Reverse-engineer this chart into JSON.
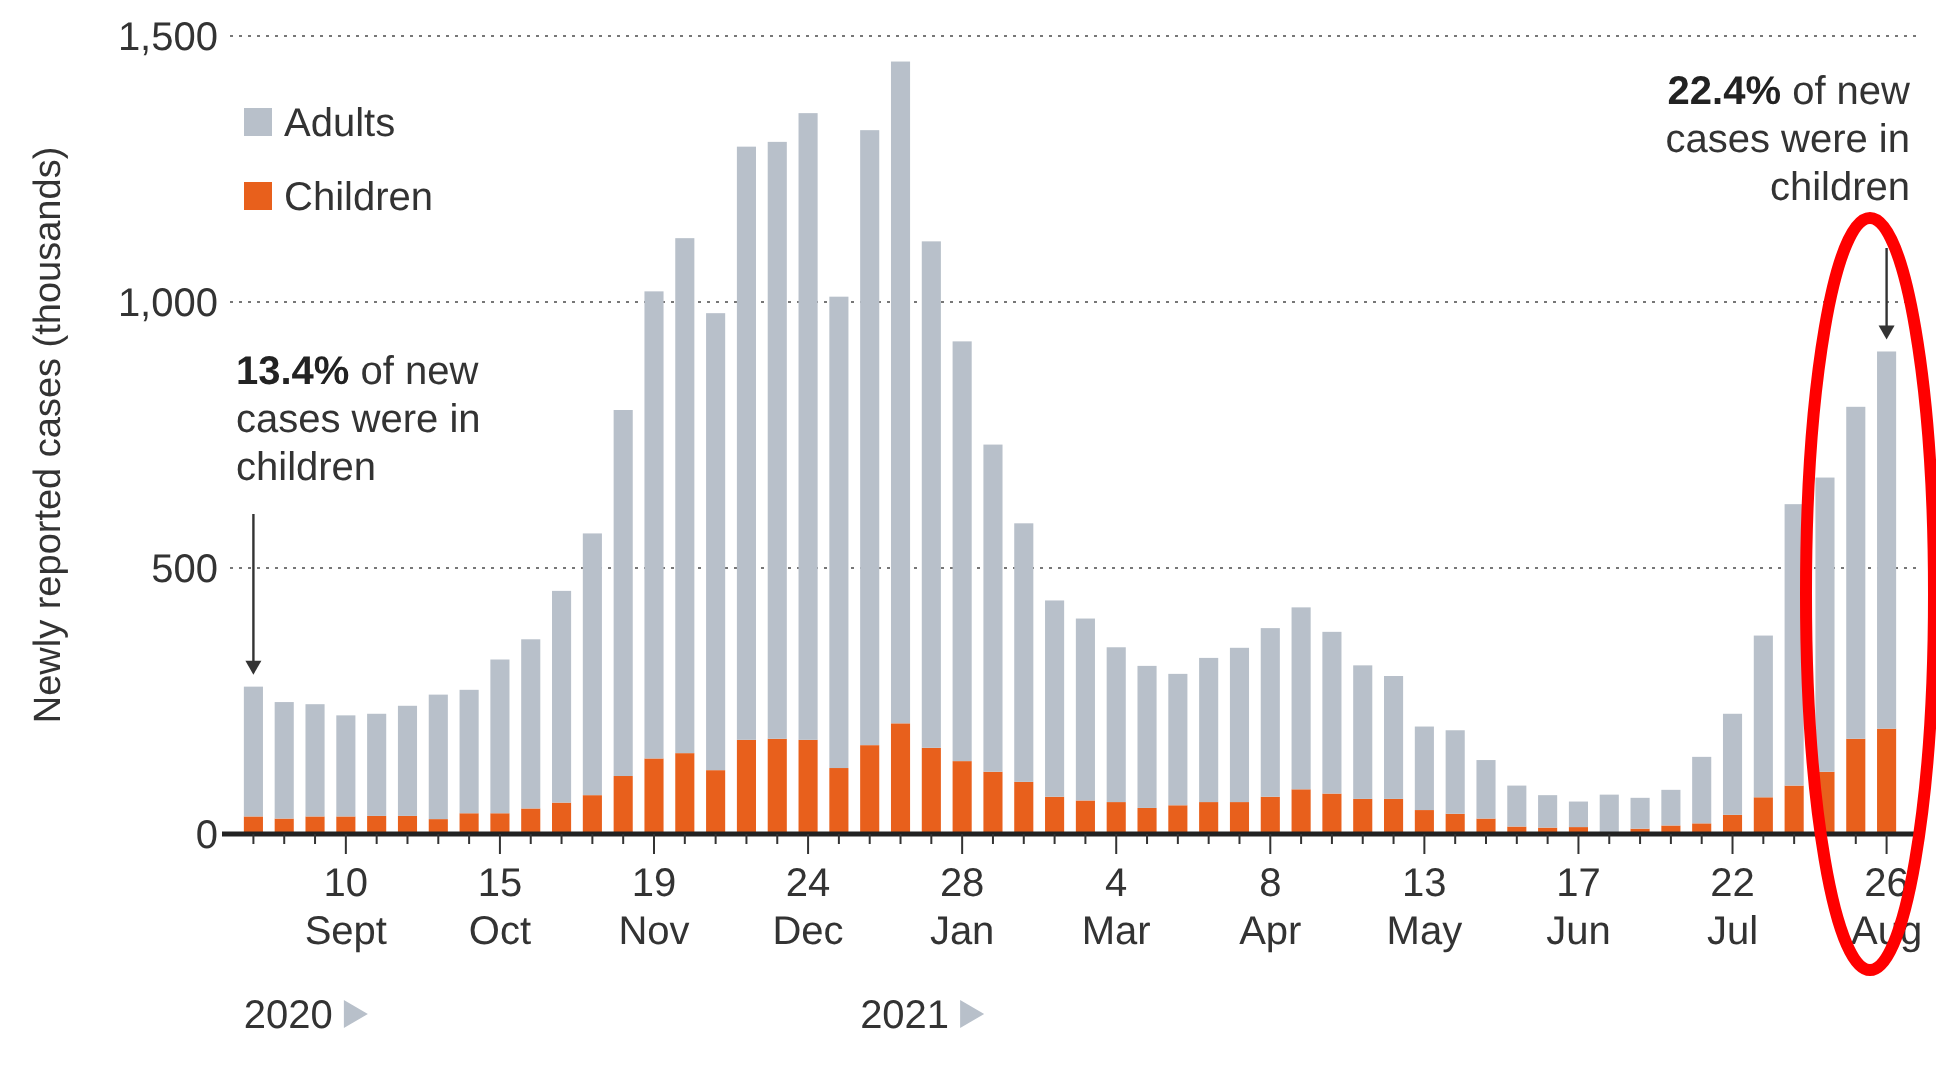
{
  "chart_data": {
    "type": "bar",
    "stacked": true,
    "ylabel": "Newly reported cases (thousands)",
    "categories": [
      null,
      null,
      null,
      "10\nSept",
      null,
      null,
      null,
      null,
      "15\nOct",
      null,
      null,
      null,
      null,
      "19\nNov",
      null,
      null,
      null,
      null,
      "24\nDec",
      null,
      null,
      null,
      null,
      "28\nJan",
      null,
      null,
      null,
      null,
      "4\nMar",
      null,
      null,
      null,
      null,
      "8\nApr",
      null,
      null,
      null,
      null,
      "13\nMay",
      null,
      null,
      null,
      null,
      "17\nJun",
      null,
      null,
      null,
      null,
      "22\nJul",
      null,
      null,
      null,
      null,
      "26\nAug"
    ],
    "series": [
      {
        "name": "Children",
        "color": "#e8601c",
        "values": [
          33,
          29,
          33,
          33,
          34,
          34,
          28,
          39,
          39,
          48,
          59,
          73,
          109,
          142,
          152,
          120,
          177,
          179,
          177,
          124,
          167,
          208,
          162,
          137,
          117,
          98,
          70,
          63,
          60,
          49,
          54,
          60,
          60,
          70,
          84,
          76,
          66,
          66,
          45,
          38,
          29,
          14,
          12,
          13,
          null,
          10,
          16,
          20,
          36,
          69,
          91,
          117,
          179,
          198
        ]
      },
      {
        "name": "Adults",
        "color": "#b8c0ca",
        "values": [
          244,
          219,
          211,
          190,
          192,
          207,
          234,
          232,
          289,
          318,
          398,
          492,
          688,
          878,
          968,
          859,
          1115,
          1122,
          1178,
          886,
          1156,
          1244,
          952,
          789,
          615,
          486,
          369,
          342,
          291,
          267,
          247,
          271,
          290,
          317,
          342,
          304,
          251,
          231,
          157,
          157,
          110,
          77,
          61,
          48,
          74,
          58,
          67,
          125,
          190,
          304,
          529,
          553,
          624,
          709
        ]
      }
    ],
    "ylim": [
      0,
      1500
    ],
    "yticks": [
      0,
      500,
      {
        "value": 1000,
        "label": "1,000"
      },
      {
        "value": 1500,
        "label": "1,500"
      }
    ],
    "grid": "y",
    "legend": "top left",
    "annotations": [
      "13.4% of new\ncases were in\nchildren",
      "22.4% of new\ncases were in\nchildren",
      "2020",
      "2021"
    ]
  }
}
